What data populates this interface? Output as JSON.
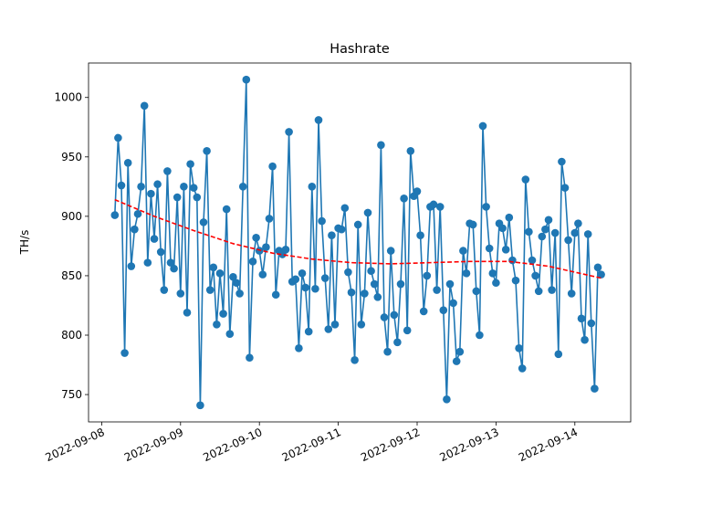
{
  "chart_data": {
    "type": "line",
    "title": "Hashrate",
    "ylabel": "TH/s",
    "x": [
      "2022-09-08 04:00",
      "2022-09-08 05:00",
      "2022-09-08 06:00",
      "2022-09-08 07:00",
      "2022-09-08 08:00",
      "2022-09-08 09:00",
      "2022-09-08 10:00",
      "2022-09-08 11:00",
      "2022-09-08 12:00",
      "2022-09-08 13:00",
      "2022-09-08 14:00",
      "2022-09-08 15:00",
      "2022-09-08 16:00",
      "2022-09-08 17:00",
      "2022-09-08 18:00",
      "2022-09-08 19:00",
      "2022-09-08 20:00",
      "2022-09-08 21:00",
      "2022-09-08 22:00",
      "2022-09-08 23:00",
      "2022-09-09 00:00",
      "2022-09-09 01:00",
      "2022-09-09 02:00",
      "2022-09-09 03:00",
      "2022-09-09 04:00",
      "2022-09-09 05:00",
      "2022-09-09 06:00",
      "2022-09-09 07:00",
      "2022-09-09 08:00",
      "2022-09-09 09:00",
      "2022-09-09 10:00",
      "2022-09-09 11:00",
      "2022-09-09 12:00",
      "2022-09-09 13:00",
      "2022-09-09 14:00",
      "2022-09-09 15:00",
      "2022-09-09 16:00",
      "2022-09-09 17:00",
      "2022-09-09 18:00",
      "2022-09-09 19:00",
      "2022-09-09 20:00",
      "2022-09-09 21:00",
      "2022-09-09 22:00",
      "2022-09-09 23:00",
      "2022-09-10 00:00",
      "2022-09-10 01:00",
      "2022-09-10 02:00",
      "2022-09-10 03:00",
      "2022-09-10 04:00",
      "2022-09-10 05:00",
      "2022-09-10 06:00",
      "2022-09-10 07:00",
      "2022-09-10 08:00",
      "2022-09-10 09:00",
      "2022-09-10 10:00",
      "2022-09-10 11:00",
      "2022-09-10 12:00",
      "2022-09-10 13:00",
      "2022-09-10 14:00",
      "2022-09-10 15:00",
      "2022-09-10 16:00",
      "2022-09-10 17:00",
      "2022-09-10 18:00",
      "2022-09-10 19:00",
      "2022-09-10 20:00",
      "2022-09-10 21:00",
      "2022-09-10 22:00",
      "2022-09-10 23:00",
      "2022-09-11 00:00",
      "2022-09-11 01:00",
      "2022-09-11 02:00",
      "2022-09-11 03:00",
      "2022-09-11 04:00",
      "2022-09-11 05:00",
      "2022-09-11 06:00",
      "2022-09-11 07:00",
      "2022-09-11 08:00",
      "2022-09-11 09:00",
      "2022-09-11 10:00",
      "2022-09-11 11:00",
      "2022-09-11 12:00",
      "2022-09-11 13:00",
      "2022-09-11 14:00",
      "2022-09-11 15:00",
      "2022-09-11 16:00",
      "2022-09-11 17:00",
      "2022-09-11 18:00",
      "2022-09-11 19:00",
      "2022-09-11 20:00",
      "2022-09-11 21:00",
      "2022-09-11 22:00",
      "2022-09-11 23:00",
      "2022-09-12 00:00",
      "2022-09-12 01:00",
      "2022-09-12 02:00",
      "2022-09-12 03:00",
      "2022-09-12 04:00",
      "2022-09-12 05:00",
      "2022-09-12 06:00",
      "2022-09-12 07:00",
      "2022-09-12 08:00",
      "2022-09-12 09:00",
      "2022-09-12 10:00",
      "2022-09-12 11:00",
      "2022-09-12 12:00",
      "2022-09-12 13:00",
      "2022-09-12 14:00",
      "2022-09-12 15:00",
      "2022-09-12 16:00",
      "2022-09-12 17:00",
      "2022-09-12 18:00",
      "2022-09-12 19:00",
      "2022-09-12 20:00",
      "2022-09-12 21:00",
      "2022-09-12 22:00",
      "2022-09-12 23:00",
      "2022-09-13 00:00",
      "2022-09-13 01:00",
      "2022-09-13 02:00",
      "2022-09-13 03:00",
      "2022-09-13 04:00",
      "2022-09-13 05:00",
      "2022-09-13 06:00",
      "2022-09-13 07:00",
      "2022-09-13 08:00",
      "2022-09-13 09:00",
      "2022-09-13 10:00",
      "2022-09-13 11:00",
      "2022-09-13 12:00",
      "2022-09-13 13:00",
      "2022-09-13 14:00",
      "2022-09-13 15:00",
      "2022-09-13 16:00",
      "2022-09-13 17:00",
      "2022-09-13 18:00",
      "2022-09-13 19:00",
      "2022-09-13 20:00",
      "2022-09-13 21:00",
      "2022-09-13 22:00",
      "2022-09-13 23:00",
      "2022-09-14 00:00",
      "2022-09-14 01:00",
      "2022-09-14 02:00",
      "2022-09-14 03:00",
      "2022-09-14 04:00",
      "2022-09-14 05:00",
      "2022-09-14 06:00",
      "2022-09-14 07:00",
      "2022-09-14 08:00"
    ],
    "series": [
      {
        "color": "#1f77b4",
        "values": [
          901,
          966,
          926,
          785,
          945,
          858,
          889,
          902,
          925,
          993,
          861,
          919,
          881,
          927,
          870,
          838,
          938,
          861,
          856,
          916,
          835,
          925,
          819,
          944,
          924,
          916,
          741,
          895,
          955,
          838,
          857,
          809,
          852,
          818,
          906,
          801,
          849,
          844,
          835,
          925,
          1015,
          781,
          862,
          882,
          871,
          851,
          874,
          898,
          942,
          834,
          871,
          868,
          872,
          971,
          845,
          847,
          789,
          852,
          840,
          803,
          925,
          839,
          981,
          896,
          848,
          805,
          884,
          809,
          890,
          889,
          907,
          853,
          836,
          779,
          893,
          809,
          835,
          903,
          854,
          843,
          832,
          960,
          815,
          786,
          871,
          817,
          794,
          843,
          915,
          804,
          955,
          917,
          921,
          884,
          820,
          850,
          908,
          910,
          838,
          908,
          821,
          746,
          843,
          827,
          778,
          786,
          871,
          852,
          894,
          893,
          837,
          800,
          976,
          908,
          873,
          852,
          844,
          894,
          890,
          872,
          899,
          863,
          846,
          789,
          772,
          931,
          887,
          863,
          850,
          837,
          883,
          889,
          897,
          838,
          886,
          784,
          946,
          924,
          880,
          835,
          886,
          894,
          814,
          796,
          885,
          810,
          755,
          857,
          851
        ]
      }
    ],
    "trend": {
      "color": "#ff0000",
      "x": [
        "2022-09-08 04:00",
        "2022-09-08 16:00",
        "2022-09-09 04:00",
        "2022-09-09 16:00",
        "2022-09-10 04:00",
        "2022-09-10 16:00",
        "2022-09-11 04:00",
        "2022-09-11 16:00",
        "2022-09-12 04:00",
        "2022-09-12 16:00",
        "2022-09-13 04:00",
        "2022-09-13 16:00",
        "2022-09-14 08:00"
      ],
      "values": [
        914,
        900,
        888,
        877,
        869,
        864,
        861,
        860,
        861,
        862,
        862,
        858,
        848
      ]
    },
    "xlim": [
      "2022-09-07 20:00",
      "2022-09-14 17:00"
    ],
    "xticks": [
      "2022-09-08",
      "2022-09-09",
      "2022-09-10",
      "2022-09-11",
      "2022-09-12",
      "2022-09-13",
      "2022-09-14"
    ],
    "ylim": [
      727,
      1029
    ],
    "yticks": [
      750,
      800,
      850,
      900,
      950,
      1000
    ]
  }
}
